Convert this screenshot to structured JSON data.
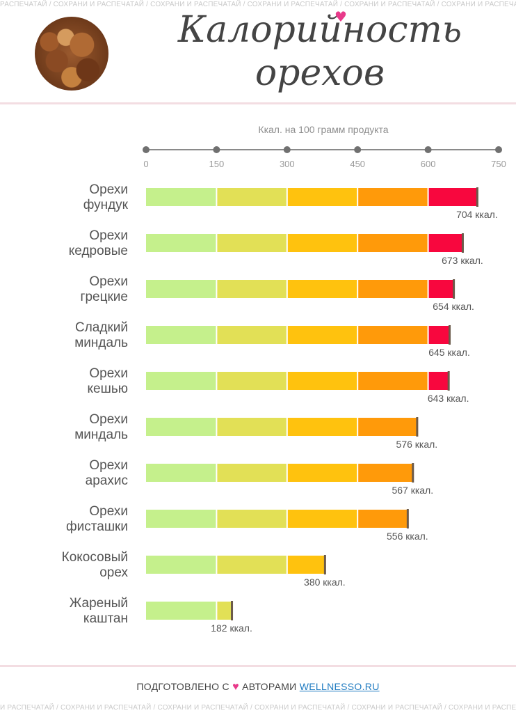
{
  "watermark_text": "РАСПЕЧАТАЙ / СОХРАНИ И РАСПЕЧАТАЙ / СОХРАНИ И РАСПЕЧАТАЙ / СОХРАНИ И РАСПЕЧАТАЙ / СОХРАНИ И РАСПЕЧАТАЙ / СОХРАНИ И РАСПЕЧАТАЙ",
  "watermark_text_bottom": "И РАСПЕЧАТАЙ / СОХРАНИ И РАСПЕЧАТАЙ / СОХРАНИ И РАСПЕЧАТАЙ / СОХРАНИ И РАСПЕЧАТАЙ / СОХРАНИ И РАСПЕЧАТАЙ / СОХРАНИ И РАСПЕЧАТАЙ",
  "title_line1": "Калорийность",
  "title_line2": "орехов",
  "footer": {
    "prefix": "ПОДГОТОВЛЕНО С",
    "middle": "АВТОРАМИ",
    "site": "WELLNESSO.RU"
  },
  "chart_data": {
    "type": "bar",
    "orientation": "horizontal",
    "title": "",
    "xlabel": "Ккал. на 100 грамм продукта",
    "xlim": [
      0,
      750
    ],
    "xticks": [
      0,
      150,
      300,
      450,
      600,
      750
    ],
    "value_suffix": " ккал.",
    "categories": [
      [
        "Орехи",
        "фундук"
      ],
      [
        "Орехи",
        "кедровые"
      ],
      [
        "Орехи",
        "грецкие"
      ],
      [
        "Сладкий",
        "миндаль"
      ],
      [
        "Орехи",
        "кешью"
      ],
      [
        "Орехи",
        "миндаль"
      ],
      [
        "Орехи",
        "арахис"
      ],
      [
        "Орехи",
        "фисташки"
      ],
      [
        "Кокосовый",
        "орех"
      ],
      [
        "Жареный",
        "каштан"
      ]
    ],
    "values": [
      704,
      673,
      654,
      645,
      643,
      576,
      567,
      556,
      380,
      182
    ],
    "band_colors": [
      "#c5f08c",
      "#e2e056",
      "#ffc20e",
      "#ff9a0a",
      "#f8073e"
    ],
    "axis_color": "#8a8a8a",
    "end_marker_color": "#6b5a4a"
  }
}
